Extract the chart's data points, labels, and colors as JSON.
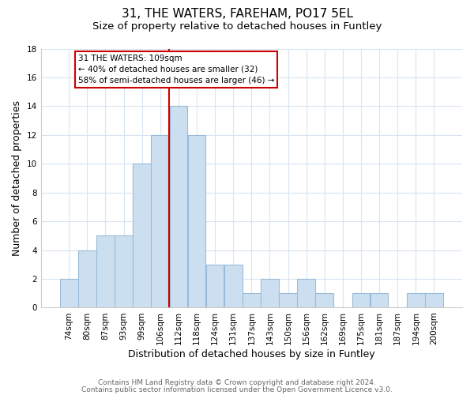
{
  "title": "31, THE WATERS, FAREHAM, PO17 5EL",
  "subtitle": "Size of property relative to detached houses in Funtley",
  "xlabel": "Distribution of detached houses by size in Funtley",
  "ylabel": "Number of detached properties",
  "bar_labels": [
    "74sqm",
    "80sqm",
    "87sqm",
    "93sqm",
    "99sqm",
    "106sqm",
    "112sqm",
    "118sqm",
    "124sqm",
    "131sqm",
    "137sqm",
    "143sqm",
    "150sqm",
    "156sqm",
    "162sqm",
    "169sqm",
    "175sqm",
    "181sqm",
    "187sqm",
    "194sqm",
    "200sqm"
  ],
  "bar_values": [
    2,
    4,
    5,
    5,
    10,
    12,
    14,
    12,
    3,
    3,
    1,
    2,
    1,
    2,
    1,
    0,
    1,
    1,
    0,
    1,
    1
  ],
  "bar_color": "#ccdff0",
  "bar_edge_color": "#9abbd8",
  "vline_x_index": 6,
  "vline_color": "#cc0000",
  "annotation_title": "31 THE WATERS: 109sqm",
  "annotation_line1": "← 40% of detached houses are smaller (32)",
  "annotation_line2": "58% of semi-detached houses are larger (46) →",
  "annotation_box_color": "#ffffff",
  "annotation_box_edge": "#cc0000",
  "ylim": [
    0,
    18
  ],
  "yticks": [
    0,
    2,
    4,
    6,
    8,
    10,
    12,
    14,
    16,
    18
  ],
  "footer1": "Contains HM Land Registry data © Crown copyright and database right 2024.",
  "footer2": "Contains public sector information licensed under the Open Government Licence v3.0.",
  "bg_color": "#ffffff",
  "grid_color": "#d8e4f0",
  "title_fontsize": 11,
  "subtitle_fontsize": 9.5,
  "axis_label_fontsize": 9,
  "tick_fontsize": 7.5,
  "footer_fontsize": 6.5
}
